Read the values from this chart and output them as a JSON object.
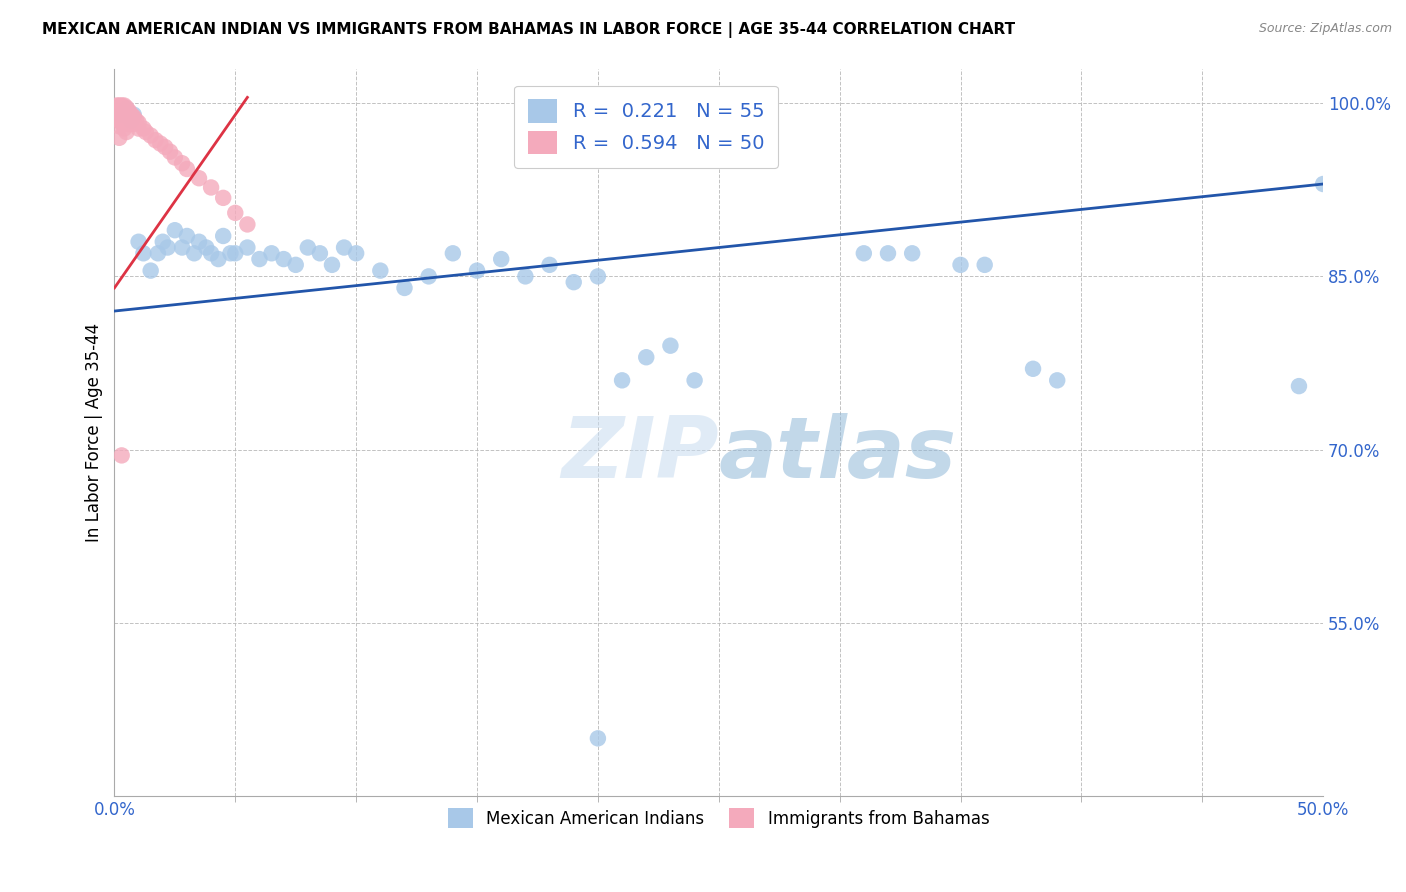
{
  "title": "MEXICAN AMERICAN INDIAN VS IMMIGRANTS FROM BAHAMAS IN LABOR FORCE | AGE 35-44 CORRELATION CHART",
  "source": "Source: ZipAtlas.com",
  "ylabel": "In Labor Force | Age 35-44",
  "xlim": [
    0.0,
    0.5
  ],
  "ylim": [
    0.4,
    1.03
  ],
  "xticks": [
    0.0,
    0.5
  ],
  "xticklabels": [
    "0.0%",
    "50.0%"
  ],
  "yticks": [
    0.55,
    0.7,
    0.85,
    1.0
  ],
  "yticklabels": [
    "55.0%",
    "70.0%",
    "85.0%",
    "100.0%"
  ],
  "legend_blue_label": "R =  0.221   N = 55",
  "legend_pink_label": "R =  0.594   N = 50",
  "blue_color": "#a8c8e8",
  "pink_color": "#f4aabc",
  "trend_blue_color": "#2255aa",
  "trend_pink_color": "#dd3344",
  "watermark_zip": "ZIP",
  "watermark_atlas": "atlas",
  "blue_scatter_x": [
    0.003,
    0.005,
    0.007,
    0.008,
    0.01,
    0.012,
    0.015,
    0.018,
    0.02,
    0.022,
    0.025,
    0.028,
    0.03,
    0.033,
    0.035,
    0.038,
    0.04,
    0.043,
    0.045,
    0.048,
    0.05,
    0.055,
    0.06,
    0.065,
    0.07,
    0.075,
    0.08,
    0.085,
    0.09,
    0.095,
    0.1,
    0.11,
    0.12,
    0.13,
    0.14,
    0.15,
    0.16,
    0.17,
    0.18,
    0.19,
    0.2,
    0.21,
    0.22,
    0.23,
    0.24,
    0.31,
    0.32,
    0.33,
    0.35,
    0.36,
    0.38,
    0.39,
    0.49,
    0.5,
    0.2
  ],
  "blue_scatter_y": [
    0.99,
    0.995,
    0.985,
    0.99,
    0.88,
    0.87,
    0.855,
    0.87,
    0.88,
    0.875,
    0.89,
    0.875,
    0.885,
    0.87,
    0.88,
    0.875,
    0.87,
    0.865,
    0.885,
    0.87,
    0.87,
    0.875,
    0.865,
    0.87,
    0.865,
    0.86,
    0.875,
    0.87,
    0.86,
    0.875,
    0.87,
    0.855,
    0.84,
    0.85,
    0.87,
    0.855,
    0.865,
    0.85,
    0.86,
    0.845,
    0.85,
    0.76,
    0.78,
    0.79,
    0.76,
    0.87,
    0.87,
    0.87,
    0.86,
    0.86,
    0.77,
    0.76,
    0.755,
    0.93,
    0.45
  ],
  "pink_scatter_x": [
    0.001,
    0.001,
    0.002,
    0.002,
    0.002,
    0.002,
    0.002,
    0.002,
    0.002,
    0.003,
    0.003,
    0.003,
    0.003,
    0.003,
    0.004,
    0.004,
    0.004,
    0.004,
    0.004,
    0.005,
    0.005,
    0.005,
    0.005,
    0.005,
    0.006,
    0.006,
    0.006,
    0.007,
    0.007,
    0.008,
    0.008,
    0.009,
    0.01,
    0.01,
    0.012,
    0.013,
    0.015,
    0.017,
    0.019,
    0.021,
    0.023,
    0.025,
    0.028,
    0.03,
    0.035,
    0.04,
    0.045,
    0.05,
    0.055,
    0.003
  ],
  "pink_scatter_y": [
    0.998,
    0.995,
    0.998,
    0.996,
    0.993,
    0.99,
    0.985,
    0.98,
    0.97,
    0.998,
    0.995,
    0.993,
    0.988,
    0.983,
    0.998,
    0.995,
    0.99,
    0.985,
    0.978,
    0.996,
    0.993,
    0.988,
    0.982,
    0.975,
    0.993,
    0.988,
    0.982,
    0.99,
    0.985,
    0.988,
    0.982,
    0.985,
    0.983,
    0.978,
    0.978,
    0.975,
    0.972,
    0.968,
    0.965,
    0.962,
    0.958,
    0.953,
    0.948,
    0.943,
    0.935,
    0.927,
    0.918,
    0.905,
    0.895,
    0.695
  ],
  "blue_trend_x": [
    0.0,
    0.5
  ],
  "blue_trend_y": [
    0.82,
    0.93
  ],
  "pink_trend_x": [
    0.0,
    0.055
  ],
  "pink_trend_y": [
    0.84,
    1.005
  ],
  "bottom_legend_blue": "Mexican American Indians",
  "bottom_legend_pink": "Immigrants from Bahamas"
}
